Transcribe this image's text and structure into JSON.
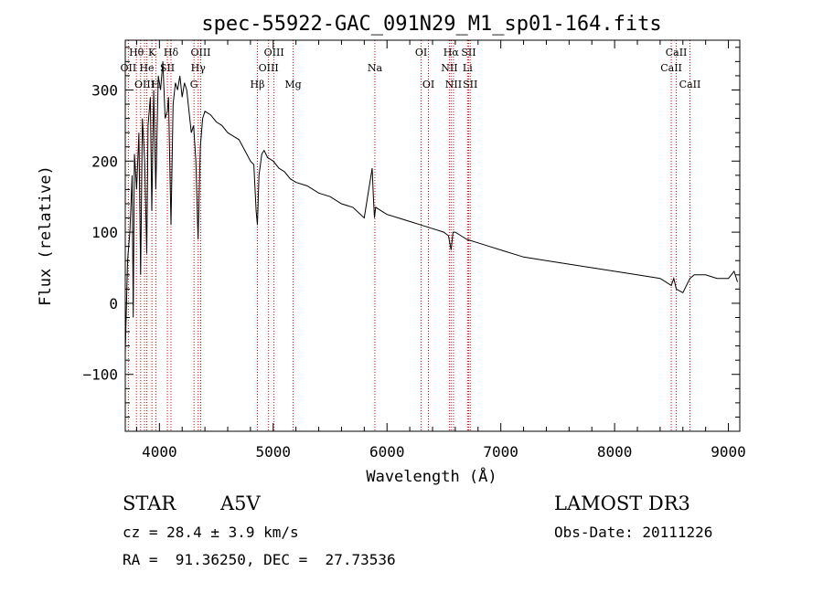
{
  "chart_data": {
    "type": "line",
    "title": "spec-55922-GAC_091N29_M1_sp01-164.fits",
    "xlabel": "Wavelength (Å)",
    "ylabel": "Flux (relative)",
    "xlim": [
      3700,
      9100
    ],
    "ylim": [
      -180,
      370
    ],
    "x_ticks": [
      4000,
      5000,
      6000,
      7000,
      8000,
      9000
    ],
    "x_tick_labels": [
      "4000",
      "5000",
      "6000",
      "7000",
      "8000",
      "9000"
    ],
    "y_ticks": [
      -100,
      0,
      100,
      200,
      300
    ],
    "y_tick_labels": [
      "−100",
      "0",
      "100",
      "200",
      "300"
    ],
    "grid": false,
    "series": [
      {
        "name": "spectrum",
        "x": [
          3700,
          3720,
          3740,
          3760,
          3770,
          3780,
          3800,
          3820,
          3835,
          3850,
          3870,
          3889,
          3900,
          3920,
          3933,
          3950,
          3968,
          3990,
          4010,
          4030,
          4050,
          4070,
          4080,
          4102,
          4120,
          4140,
          4160,
          4180,
          4200,
          4220,
          4240,
          4260,
          4280,
          4300,
          4320,
          4340,
          4360,
          4380,
          4400,
          4450,
          4500,
          4550,
          4600,
          4650,
          4700,
          4750,
          4800,
          4830,
          4850,
          4861,
          4875,
          4900,
          4920,
          4950,
          5000,
          5050,
          5100,
          5150,
          5200,
          5300,
          5400,
          5500,
          5600,
          5700,
          5800,
          5870,
          5880,
          5890,
          5900,
          5950,
          6000,
          6100,
          6200,
          6300,
          6400,
          6500,
          6540,
          6563,
          6580,
          6600,
          6650,
          6700,
          6800,
          6900,
          7000,
          7200,
          7400,
          7600,
          7800,
          8000,
          8200,
          8400,
          8450,
          8498,
          8520,
          8542,
          8600,
          8662,
          8700,
          8800,
          8900,
          9000,
          9050,
          9080
        ],
        "y": [
          -70,
          60,
          100,
          180,
          -20,
          210,
          160,
          240,
          40,
          260,
          200,
          70,
          250,
          290,
          130,
          300,
          160,
          320,
          300,
          340,
          260,
          270,
          290,
          110,
          280,
          310,
          300,
          320,
          290,
          310,
          300,
          270,
          240,
          250,
          200,
          90,
          220,
          260,
          270,
          265,
          255,
          250,
          240,
          235,
          230,
          215,
          200,
          195,
          130,
          110,
          180,
          210,
          215,
          205,
          200,
          190,
          185,
          175,
          170,
          165,
          155,
          150,
          140,
          135,
          120,
          190,
          150,
          120,
          135,
          130,
          125,
          120,
          115,
          110,
          105,
          100,
          95,
          75,
          100,
          100,
          95,
          90,
          85,
          80,
          75,
          65,
          60,
          55,
          50,
          45,
          40,
          35,
          30,
          25,
          35,
          20,
          15,
          35,
          40,
          40,
          35,
          35,
          45,
          30
        ]
      }
    ],
    "line_labels": [
      {
        "label": "Hθ",
        "x": 3798,
        "row": 1
      },
      {
        "label": "OII",
        "x": 3727,
        "row": 2
      },
      {
        "label": "OIII",
        "x": 3869,
        "row": 3
      },
      {
        "label": "K",
        "x": 3934,
        "row": 1
      },
      {
        "label": "He",
        "x": 3889,
        "row": 2
      },
      {
        "label": "H",
        "x": 3968,
        "row": 3
      },
      {
        "label": "Hδ",
        "x": 4102,
        "row": 1
      },
      {
        "label": "SII",
        "x": 4070,
        "row": 2
      },
      {
        "label": "G",
        "x": 4304,
        "row": 3
      },
      {
        "label": "OIII",
        "x": 4363,
        "row": 1
      },
      {
        "label": "Hγ",
        "x": 4341,
        "row": 2
      },
      {
        "label": "Hβ",
        "x": 4861,
        "row": 3
      },
      {
        "label": "OIII",
        "x": 5007,
        "row": 1
      },
      {
        "label": "OIII",
        "x": 4959,
        "row": 2
      },
      {
        "label": "Mg",
        "x": 5175,
        "row": 3
      },
      {
        "label": "Na",
        "x": 5893,
        "row": 2
      },
      {
        "label": "OI",
        "x": 6300,
        "row": 1
      },
      {
        "label": "OI",
        "x": 6364,
        "row": 3
      },
      {
        "label": "Hα",
        "x": 6563,
        "row": 1
      },
      {
        "label": "NII",
        "x": 6548,
        "row": 2
      },
      {
        "label": "NII",
        "x": 6584,
        "row": 3
      },
      {
        "label": "SII",
        "x": 6717,
        "row": 1
      },
      {
        "label": "Li",
        "x": 6708,
        "row": 2
      },
      {
        "label": "SII",
        "x": 6731,
        "row": 3
      },
      {
        "label": "CaII",
        "x": 8542,
        "row": 1
      },
      {
        "label": "CaII",
        "x": 8498,
        "row": 2
      },
      {
        "label": "CaII",
        "x": 8662,
        "row": 3
      }
    ],
    "line_markers_x": [
      3727,
      3798,
      3835,
      3869,
      3889,
      3934,
      3968,
      4070,
      4102,
      4304,
      4341,
      4363,
      4861,
      4959,
      5007,
      5175,
      5893,
      6300,
      6364,
      6548,
      6563,
      6584,
      6708,
      6717,
      6731,
      8498,
      8542,
      8662
    ]
  },
  "info": {
    "object_class": "STAR",
    "subclass": "A5V",
    "survey": "LAMOST DR3",
    "cz": "cz = 28.4 ± 3.9 km/s",
    "obs_date": "Obs-Date: 20111226",
    "coords": "RA =  91.36250, DEC =  27.73536"
  },
  "colors": {
    "line_marker": "#cc0000",
    "spectrum": "#000000",
    "axes": "#000000"
  }
}
